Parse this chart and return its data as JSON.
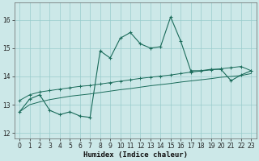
{
  "bg_color": "#cce8e8",
  "grid_color": "#99cccc",
  "line_color": "#1a6b5a",
  "xlabel": "Humidex (Indice chaleur)",
  "ylim": [
    11.8,
    16.6
  ],
  "xlim": [
    -0.5,
    23.5
  ],
  "yticks": [
    12,
    13,
    14,
    15,
    16
  ],
  "xticks": [
    0,
    1,
    2,
    3,
    4,
    5,
    6,
    7,
    8,
    9,
    10,
    11,
    12,
    13,
    14,
    15,
    16,
    17,
    18,
    19,
    20,
    21,
    22,
    23
  ],
  "series1_x": [
    0,
    1,
    2,
    3,
    4,
    5,
    6,
    7,
    8,
    9,
    10,
    11,
    12,
    13,
    14,
    15,
    16,
    17,
    18,
    19,
    20,
    21,
    22,
    23
  ],
  "series1_y": [
    12.75,
    13.2,
    13.35,
    12.8,
    12.65,
    12.75,
    12.6,
    12.55,
    14.9,
    14.65,
    15.35,
    15.55,
    15.15,
    15.0,
    15.05,
    16.1,
    15.25,
    14.2,
    14.2,
    14.25,
    14.25,
    13.85,
    14.05,
    14.2
  ],
  "series2_x": [
    0,
    1,
    2,
    3,
    4,
    5,
    6,
    7,
    8,
    9,
    10,
    11,
    12,
    13,
    14,
    15,
    16,
    17,
    18,
    19,
    20,
    21,
    22,
    23
  ],
  "series2_y": [
    13.15,
    13.35,
    13.45,
    13.5,
    13.55,
    13.6,
    13.65,
    13.68,
    13.73,
    13.78,
    13.83,
    13.88,
    13.93,
    13.97,
    14.01,
    14.05,
    14.1,
    14.15,
    14.19,
    14.23,
    14.27,
    14.31,
    14.35,
    14.2
  ],
  "series3_x": [
    0,
    1,
    2,
    3,
    4,
    5,
    6,
    7,
    8,
    9,
    10,
    11,
    12,
    13,
    14,
    15,
    16,
    17,
    18,
    19,
    20,
    21,
    22,
    23
  ],
  "series3_y": [
    12.75,
    13.0,
    13.1,
    13.18,
    13.24,
    13.3,
    13.34,
    13.38,
    13.43,
    13.48,
    13.53,
    13.57,
    13.62,
    13.67,
    13.71,
    13.75,
    13.8,
    13.84,
    13.88,
    13.92,
    13.97,
    14.0,
    14.03,
    14.1
  ]
}
